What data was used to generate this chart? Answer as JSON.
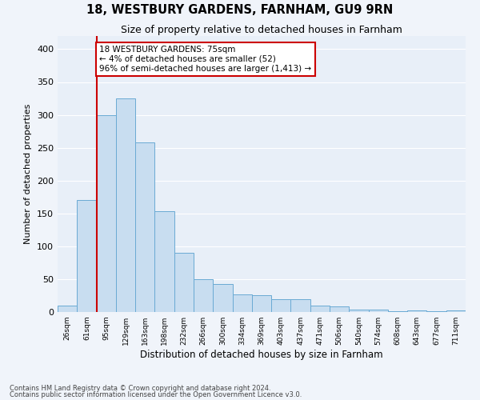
{
  "title": "18, WESTBURY GARDENS, FARNHAM, GU9 9RN",
  "subtitle": "Size of property relative to detached houses in Farnham",
  "xlabel": "Distribution of detached houses by size in Farnham",
  "ylabel": "Number of detached properties",
  "bar_color": "#c8ddf0",
  "bar_edge_color": "#6aaad4",
  "background_color": "#e8eff8",
  "grid_color": "#ffffff",
  "fig_background": "#f0f4fa",
  "categories": [
    "26sqm",
    "61sqm",
    "95sqm",
    "129sqm",
    "163sqm",
    "198sqm",
    "232sqm",
    "266sqm",
    "300sqm",
    "334sqm",
    "369sqm",
    "403sqm",
    "437sqm",
    "471sqm",
    "506sqm",
    "540sqm",
    "574sqm",
    "608sqm",
    "643sqm",
    "677sqm",
    "711sqm"
  ],
  "values": [
    10,
    170,
    300,
    325,
    258,
    153,
    90,
    50,
    43,
    27,
    26,
    20,
    20,
    10,
    9,
    4,
    4,
    1,
    2,
    1,
    2
  ],
  "ylim": [
    0,
    420
  ],
  "yticks": [
    0,
    50,
    100,
    150,
    200,
    250,
    300,
    350,
    400
  ],
  "property_line_x": 1.5,
  "annotation_text": "18 WESTBURY GARDENS: 75sqm\n← 4% of detached houses are smaller (52)\n96% of semi-detached houses are larger (1,413) →",
  "annotation_box_color": "#ffffff",
  "annotation_box_edge": "#cc0000",
  "red_line_color": "#cc0000",
  "footer_line1": "Contains HM Land Registry data © Crown copyright and database right 2024.",
  "footer_line2": "Contains public sector information licensed under the Open Government Licence v3.0."
}
